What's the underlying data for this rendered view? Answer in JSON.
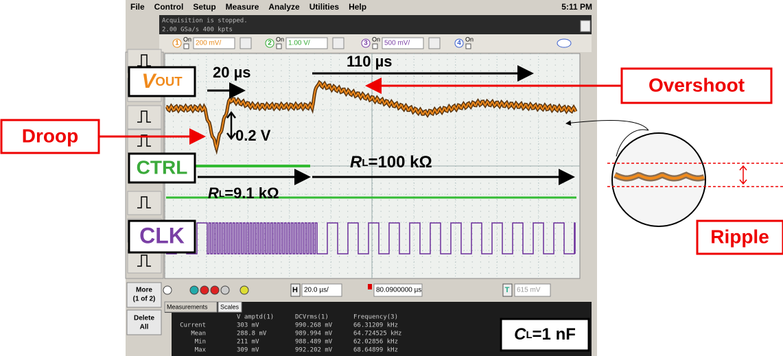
{
  "menu": {
    "items": [
      "File",
      "Control",
      "Setup",
      "Measure",
      "Analyze",
      "Utilities",
      "Help"
    ],
    "time": "5:11 PM"
  },
  "status": [
    "Acquisition is stopped.",
    "2.00 GSa/s  400 kpts"
  ],
  "channels": [
    {
      "number": "1",
      "on": "On",
      "scale": "200 mV/"
    },
    {
      "number": "2",
      "on": "On",
      "scale": "1.00 V/"
    },
    {
      "number": "3",
      "on": "On",
      "scale": "500 mV/"
    },
    {
      "number": "4",
      "on": "On"
    }
  ],
  "toolbar": {
    "more": "More",
    "page": "(1 of 2)",
    "delete": [
      "Delete",
      "All"
    ]
  },
  "bottom": {
    "h": "H",
    "timebase": "20.0 µs/",
    "delay": "80.0900000 µs",
    "t": "T",
    "trigger": "615 mV"
  },
  "tabs": [
    "Measurements",
    "Scales"
  ],
  "measurements": {
    "headers": [
      "V amptd(1)",
      "DCVrms(1)",
      "Frequency(3)"
    ],
    "rows": [
      [
        "Current",
        "303 mV",
        "990.268 mV",
        "66.31209 kHz"
      ],
      [
        "Mean",
        "288.8 mV",
        "989.994 mV",
        "64.724525 kHz"
      ],
      [
        "Min",
        "211 mV",
        "988.489 mV",
        "62.02856 kHz"
      ],
      [
        "Max",
        "309 mV",
        "992.202 mV",
        "68.64899 kHz"
      ]
    ]
  },
  "annotations": {
    "vout": {
      "main": "V",
      "sub": "OUT"
    },
    "ctrl": "CTRL",
    "clk": "CLK",
    "t20": "20 µs",
    "t110": "110 µs",
    "dv": "0.2 V",
    "overshoot": "Overshoot",
    "droop": "Droop",
    "ripple": "Ripple",
    "rl100": {
      "main": "R",
      "sub": "L",
      "rest": "=100 kΩ"
    },
    "rl9": {
      "main": "R",
      "sub": "L",
      "rest": "=9.1 kΩ"
    },
    "cl": {
      "main": "C",
      "sub": "L",
      "rest": "=1 nF"
    }
  }
}
